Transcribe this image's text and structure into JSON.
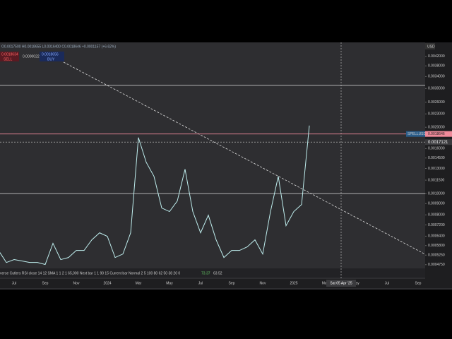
{
  "header": {
    "ohlc": "O0.0017500 H0.0018655 L0.0016400 C0.0018646 +0.0001157 (+6.62%)",
    "sell_price": "0.0018634",
    "sell": "SELL",
    "spread": "0.0000022",
    "buy_price": "0.0018656",
    "buy": "BUY",
    "currency": "USD"
  },
  "indicator": {
    "text": "verse Cutlers RSI close 14 12 SMA 1 1 2 1 65,000 Next bar 1 1 90 15 Current bar Normal 2 5 100 80 62 50 38 20 0",
    "value1": "73.37",
    "value2": "63.52"
  },
  "chart_data": {
    "type": "line",
    "log_scale": true,
    "color": "#bfeeee",
    "categories": [
      null,
      null,
      "Jul",
      null,
      null,
      null,
      "Sep",
      null,
      null,
      null,
      "Nov",
      null,
      null,
      null,
      "2024",
      null,
      null,
      null,
      "Mar",
      null,
      null,
      null,
      "May",
      null,
      null,
      null,
      "Jul",
      null,
      null,
      null,
      "Sep",
      null,
      null,
      null,
      "Nov",
      null,
      null,
      null,
      "2025",
      null,
      null,
      null,
      "Mar",
      null,
      null,
      null,
      "May",
      null,
      null,
      null,
      "Jul",
      null,
      null,
      null,
      "Sep"
    ],
    "values": [
      0.000551,
      0.000486,
      0.000501,
      0.000494,
      0.000486,
      0.000486,
      0.000476,
      0.000594,
      0.000501,
      0.000512,
      0.000551,
      0.000551,
      0.000616,
      0.000663,
      0.000639,
      0.000512,
      0.000531,
      0.000663,
      0.001796,
      0.001387,
      0.001197,
      0.000859,
      0.000828,
      0.000924,
      0.001289,
      0.000828,
      0.000663,
      0.000797,
      0.000616,
      0.000512,
      0.000551,
      0.000551,
      0.000572,
      0.000616,
      0.000531,
      0.000828,
      0.001197,
      0.000714,
      0.000828,
      0.000891,
      0.002036,
      null,
      null,
      null,
      null,
      null,
      null,
      null,
      null,
      null,
      null,
      null,
      null,
      null,
      null
    ],
    "ylim": [
      0.000457,
      0.00486
    ],
    "yticks": [
      {
        "value": 0.0042,
        "label": "0.0042000"
      },
      {
        "value": 0.0038,
        "label": "0.0038000"
      },
      {
        "value": 0.0034,
        "label": "0.0034000"
      },
      {
        "value": 0.003,
        "label": "0.0030000"
      },
      {
        "value": 0.0026,
        "label": "0.0026000"
      },
      {
        "value": 0.0023,
        "label": "0.0023000"
      },
      {
        "value": 0.002,
        "label": "0.0020000"
      },
      {
        "value": 0.0016,
        "label": "0.0016000"
      },
      {
        "value": 0.00145,
        "label": "0.0014500"
      },
      {
        "value": 0.0013,
        "label": "0.0013000"
      },
      {
        "value": 0.00115,
        "label": "0.0011500"
      },
      {
        "value": 0.001,
        "label": "0.0010000"
      },
      {
        "value": 0.0009,
        "label": "0.0009000"
      },
      {
        "value": 0.0008,
        "label": "0.0008000"
      },
      {
        "value": 0.00072,
        "label": "0.0007200"
      },
      {
        "value": 0.00064,
        "label": "0.0006400"
      },
      {
        "value": 0.00058,
        "label": "0.0005800"
      },
      {
        "value": 0.000525,
        "label": "0.0005250"
      },
      {
        "value": 0.000475,
        "label": "0.0004750"
      }
    ],
    "levels": [
      {
        "value": 0.0031,
        "color": "#dddddd"
      },
      {
        "value": 0.001,
        "color": "#dddddd"
      }
    ],
    "symbol": "SPELLUSD",
    "last_price": {
      "value": 0.0018646,
      "label": "0.0018646"
    },
    "last_color": "#f08a9a",
    "crosshair_price": {
      "value": 0.0017121,
      "label": "0.0017121"
    },
    "crosshair_date": "Sat 05 Apr '25"
  }
}
